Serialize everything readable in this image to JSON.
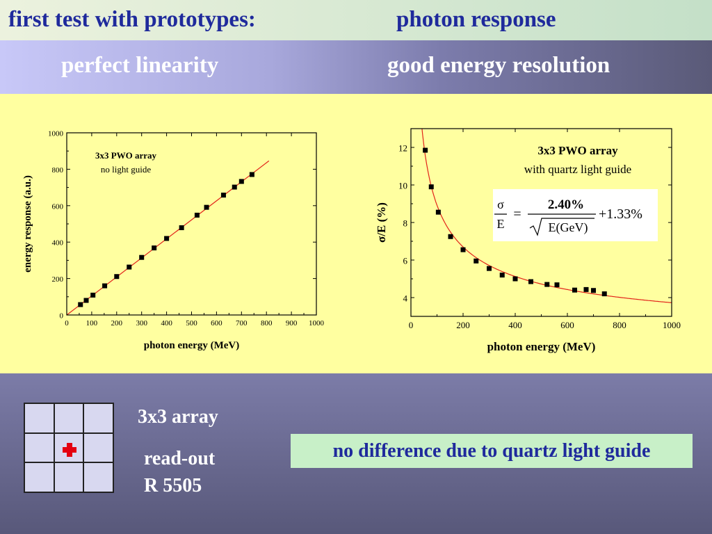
{
  "header": {
    "title_left": "first test with prototypes:",
    "title_right": "photon response",
    "subtitle_left": "perfect linearity",
    "subtitle_right": "good energy resolution"
  },
  "colors": {
    "title": "#1f2a9c",
    "fit_line": "#e2231a",
    "marker": "#000000",
    "readout_cell": "#e40010",
    "note_bg": "#c8f0c8"
  },
  "chart_data": [
    {
      "type": "scatter",
      "xlabel": "photon energy (MeV)",
      "ylabel": "energy response (a.u.)",
      "xlim": [
        0,
        1000
      ],
      "ylim": [
        0,
        1000
      ],
      "xticks": [
        "0",
        "100",
        "200",
        "300",
        "400",
        "500",
        "600",
        "700",
        "800",
        "900",
        "1000"
      ],
      "yticks": [
        "0",
        "200",
        "400",
        "600",
        "800",
        "1000"
      ],
      "annotations": [
        "3x3 PWO array",
        "no light guide"
      ],
      "fit": "line",
      "points": [
        [
          55,
          57
        ],
        [
          78,
          80
        ],
        [
          105,
          109
        ],
        [
          152,
          160
        ],
        [
          200,
          211
        ],
        [
          250,
          263
        ],
        [
          300,
          316
        ],
        [
          350,
          368
        ],
        [
          400,
          420
        ],
        [
          460,
          479
        ],
        [
          522,
          548
        ],
        [
          560,
          591
        ],
        [
          628,
          658
        ],
        [
          672,
          702
        ],
        [
          700,
          733
        ],
        [
          742,
          771
        ]
      ],
      "fit_line": [
        [
          0,
          0
        ],
        [
          810,
          846
        ]
      ]
    },
    {
      "type": "scatter",
      "xlabel": "photon energy (MeV)",
      "ylabel": "σ/E (%)",
      "xlim": [
        0,
        1000
      ],
      "ylim": [
        3,
        13
      ],
      "xticks": [
        "0",
        "200",
        "400",
        "600",
        "800",
        "1000"
      ],
      "yticks": [
        "4",
        "6",
        "8",
        "10",
        "12"
      ],
      "annotations": [
        "3x3 PWO array",
        "with quartz light guide"
      ],
      "formula": {
        "lhs_num": "σ",
        "lhs_den": "E",
        "equals": "=",
        "numerator": "2.40%",
        "denominator": "E(GeV)",
        "plus": "+1.33%"
      },
      "fit": "2.40/sqrt(E/1000)+1.33",
      "points": [
        [
          55,
          11.85
        ],
        [
          78,
          9.9
        ],
        [
          105,
          8.55
        ],
        [
          152,
          7.25
        ],
        [
          200,
          6.55
        ],
        [
          250,
          5.95
        ],
        [
          300,
          5.55
        ],
        [
          350,
          5.2
        ],
        [
          400,
          5.0
        ],
        [
          460,
          4.85
        ],
        [
          522,
          4.7
        ],
        [
          560,
          4.68
        ],
        [
          628,
          4.4
        ],
        [
          672,
          4.43
        ],
        [
          700,
          4.38
        ],
        [
          742,
          4.2
        ]
      ]
    }
  ],
  "bottom": {
    "array_label": "3x3 array",
    "readout_label": "read-out",
    "readout_model": "R 5505",
    "note": "no difference due to quartz light guide"
  }
}
